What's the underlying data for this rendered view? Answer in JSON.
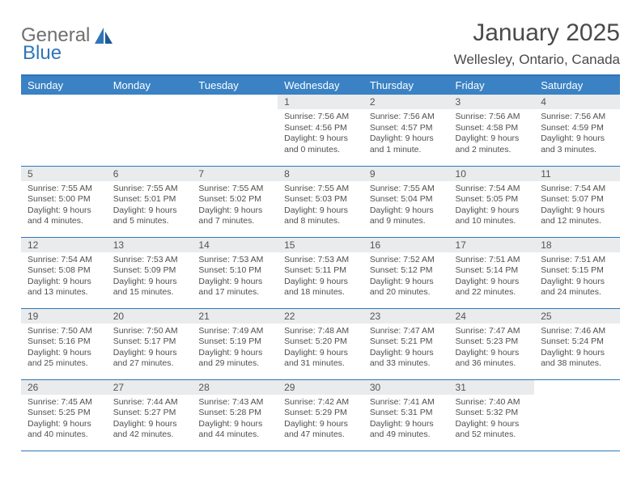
{
  "logo": {
    "text_gray": "General",
    "text_blue": "Blue"
  },
  "header": {
    "month_title": "January 2025",
    "location": "Wellesley, Ontario, Canada"
  },
  "day_headers": [
    "Sunday",
    "Monday",
    "Tuesday",
    "Wednesday",
    "Thursday",
    "Friday",
    "Saturday"
  ],
  "style": {
    "header_bg": "#3a82c4",
    "header_text": "#ffffff",
    "border_color": "#2f76b8",
    "daynum_bg": "#e9ebec",
    "body_text": "#4f4f4f",
    "font": "Arial"
  },
  "calendar_type": "month-grid",
  "weeks": [
    [
      null,
      null,
      null,
      {
        "n": "1",
        "sunrise": "7:56 AM",
        "sunset": "4:56 PM",
        "daylight": "9 hours and 0 minutes."
      },
      {
        "n": "2",
        "sunrise": "7:56 AM",
        "sunset": "4:57 PM",
        "daylight": "9 hours and 1 minute."
      },
      {
        "n": "3",
        "sunrise": "7:56 AM",
        "sunset": "4:58 PM",
        "daylight": "9 hours and 2 minutes."
      },
      {
        "n": "4",
        "sunrise": "7:56 AM",
        "sunset": "4:59 PM",
        "daylight": "9 hours and 3 minutes."
      }
    ],
    [
      {
        "n": "5",
        "sunrise": "7:55 AM",
        "sunset": "5:00 PM",
        "daylight": "9 hours and 4 minutes."
      },
      {
        "n": "6",
        "sunrise": "7:55 AM",
        "sunset": "5:01 PM",
        "daylight": "9 hours and 5 minutes."
      },
      {
        "n": "7",
        "sunrise": "7:55 AM",
        "sunset": "5:02 PM",
        "daylight": "9 hours and 7 minutes."
      },
      {
        "n": "8",
        "sunrise": "7:55 AM",
        "sunset": "5:03 PM",
        "daylight": "9 hours and 8 minutes."
      },
      {
        "n": "9",
        "sunrise": "7:55 AM",
        "sunset": "5:04 PM",
        "daylight": "9 hours and 9 minutes."
      },
      {
        "n": "10",
        "sunrise": "7:54 AM",
        "sunset": "5:05 PM",
        "daylight": "9 hours and 10 minutes."
      },
      {
        "n": "11",
        "sunrise": "7:54 AM",
        "sunset": "5:07 PM",
        "daylight": "9 hours and 12 minutes."
      }
    ],
    [
      {
        "n": "12",
        "sunrise": "7:54 AM",
        "sunset": "5:08 PM",
        "daylight": "9 hours and 13 minutes."
      },
      {
        "n": "13",
        "sunrise": "7:53 AM",
        "sunset": "5:09 PM",
        "daylight": "9 hours and 15 minutes."
      },
      {
        "n": "14",
        "sunrise": "7:53 AM",
        "sunset": "5:10 PM",
        "daylight": "9 hours and 17 minutes."
      },
      {
        "n": "15",
        "sunrise": "7:53 AM",
        "sunset": "5:11 PM",
        "daylight": "9 hours and 18 minutes."
      },
      {
        "n": "16",
        "sunrise": "7:52 AM",
        "sunset": "5:12 PM",
        "daylight": "9 hours and 20 minutes."
      },
      {
        "n": "17",
        "sunrise": "7:51 AM",
        "sunset": "5:14 PM",
        "daylight": "9 hours and 22 minutes."
      },
      {
        "n": "18",
        "sunrise": "7:51 AM",
        "sunset": "5:15 PM",
        "daylight": "9 hours and 24 minutes."
      }
    ],
    [
      {
        "n": "19",
        "sunrise": "7:50 AM",
        "sunset": "5:16 PM",
        "daylight": "9 hours and 25 minutes."
      },
      {
        "n": "20",
        "sunrise": "7:50 AM",
        "sunset": "5:17 PM",
        "daylight": "9 hours and 27 minutes."
      },
      {
        "n": "21",
        "sunrise": "7:49 AM",
        "sunset": "5:19 PM",
        "daylight": "9 hours and 29 minutes."
      },
      {
        "n": "22",
        "sunrise": "7:48 AM",
        "sunset": "5:20 PM",
        "daylight": "9 hours and 31 minutes."
      },
      {
        "n": "23",
        "sunrise": "7:47 AM",
        "sunset": "5:21 PM",
        "daylight": "9 hours and 33 minutes."
      },
      {
        "n": "24",
        "sunrise": "7:47 AM",
        "sunset": "5:23 PM",
        "daylight": "9 hours and 36 minutes."
      },
      {
        "n": "25",
        "sunrise": "7:46 AM",
        "sunset": "5:24 PM",
        "daylight": "9 hours and 38 minutes."
      }
    ],
    [
      {
        "n": "26",
        "sunrise": "7:45 AM",
        "sunset": "5:25 PM",
        "daylight": "9 hours and 40 minutes."
      },
      {
        "n": "27",
        "sunrise": "7:44 AM",
        "sunset": "5:27 PM",
        "daylight": "9 hours and 42 minutes."
      },
      {
        "n": "28",
        "sunrise": "7:43 AM",
        "sunset": "5:28 PM",
        "daylight": "9 hours and 44 minutes."
      },
      {
        "n": "29",
        "sunrise": "7:42 AM",
        "sunset": "5:29 PM",
        "daylight": "9 hours and 47 minutes."
      },
      {
        "n": "30",
        "sunrise": "7:41 AM",
        "sunset": "5:31 PM",
        "daylight": "9 hours and 49 minutes."
      },
      {
        "n": "31",
        "sunrise": "7:40 AM",
        "sunset": "5:32 PM",
        "daylight": "9 hours and 52 minutes."
      },
      null
    ]
  ],
  "labels": {
    "sunrise": "Sunrise:",
    "sunset": "Sunset:",
    "daylight": "Daylight:"
  }
}
